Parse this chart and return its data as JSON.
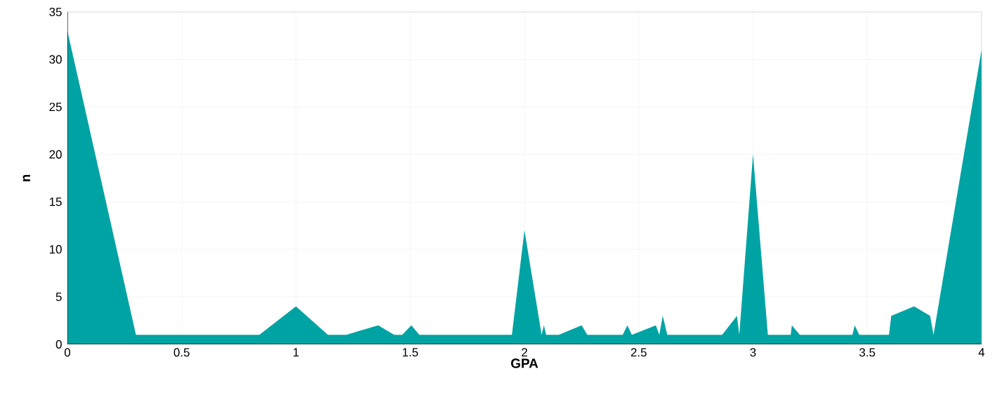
{
  "chart_data": {
    "type": "area",
    "xlabel": "GPA",
    "ylabel": "n",
    "x": [
      0,
      0.3,
      0.84,
      1.0,
      1.14,
      1.22,
      1.36,
      1.43,
      1.465,
      1.505,
      1.54,
      1.945,
      2.0,
      2.075,
      2.085,
      2.095,
      2.15,
      2.25,
      2.275,
      2.43,
      2.45,
      2.47,
      2.575,
      2.59,
      2.605,
      2.625,
      2.865,
      2.93,
      2.94,
      3.0,
      3.065,
      3.165,
      3.17,
      3.205,
      3.435,
      3.445,
      3.465,
      3.595,
      3.605,
      3.705,
      3.775,
      3.79,
      4.0
    ],
    "values": [
      33,
      1,
      1,
      4,
      1,
      1,
      2,
      1,
      1,
      2,
      1,
      1,
      12,
      1,
      2,
      1,
      1,
      2,
      1,
      1,
      2,
      1,
      2,
      1,
      3,
      1,
      1,
      3,
      1,
      20,
      1,
      1,
      2,
      1,
      1,
      2,
      1,
      1,
      3,
      4,
      3,
      1,
      31
    ],
    "color": "#00a3a3",
    "xlim": [
      0,
      4
    ],
    "xticks": [
      0,
      0.5,
      1,
      1.5,
      2,
      2.5,
      3,
      3.5,
      4
    ],
    "ylim": [
      0,
      35
    ],
    "yticks": [
      0,
      5,
      10,
      15,
      20,
      25,
      30,
      35
    ],
    "grid": true
  }
}
